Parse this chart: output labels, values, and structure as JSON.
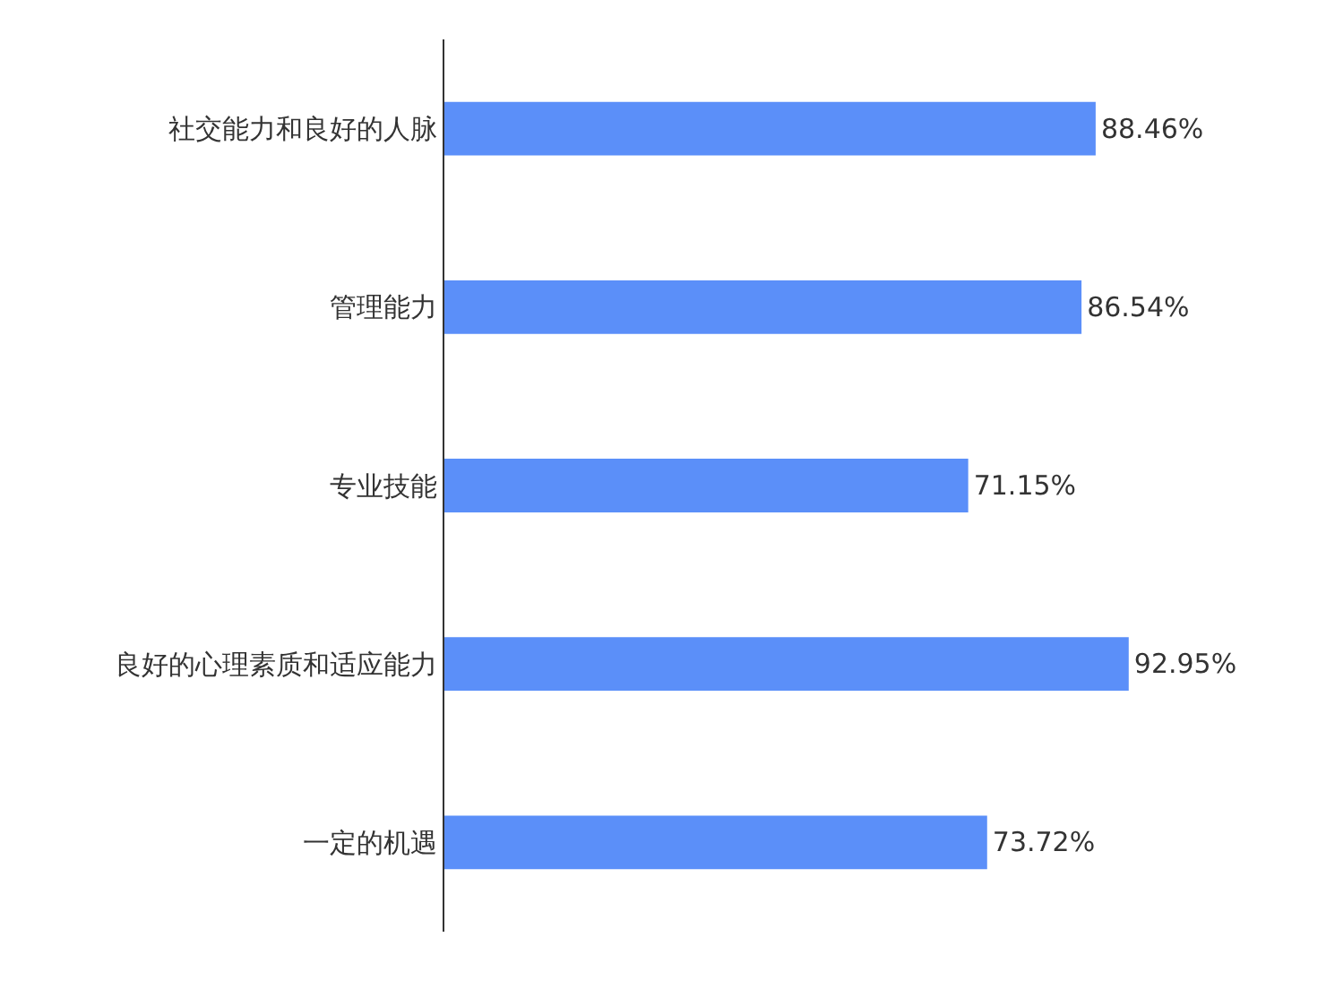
{
  "chart_data": {
    "type": "bar",
    "orientation": "horizontal",
    "categories": [
      "社交能力和良好的人脉",
      "管理能力",
      "专业技能",
      "良好的心理素质和适应能力",
      "一定的机遇"
    ],
    "values": [
      88.46,
      86.54,
      71.15,
      92.95,
      73.72
    ],
    "value_labels": [
      "88.46%",
      "86.54%",
      "71.15%",
      "92.95%",
      "73.72%"
    ],
    "color": "#5b8ff9",
    "tick_labels": "y"
  }
}
